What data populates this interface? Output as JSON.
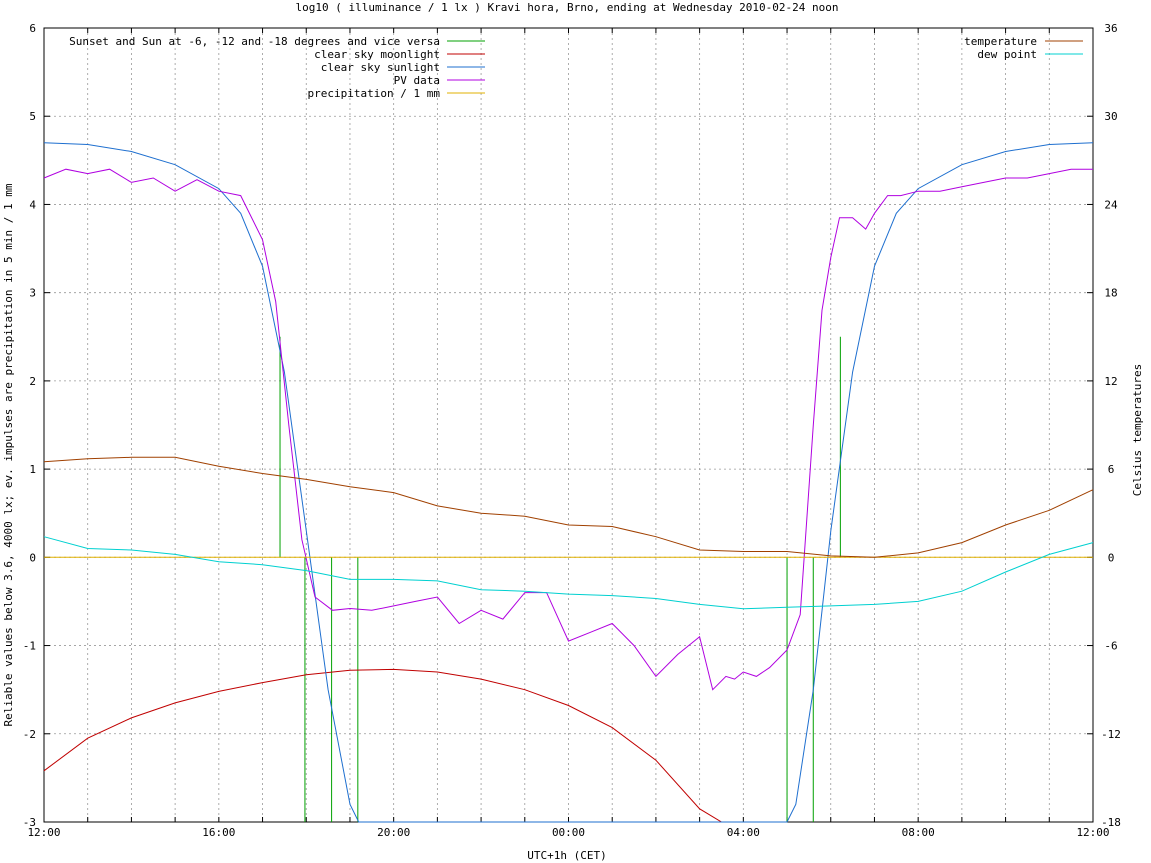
{
  "chart_data": {
    "type": "line",
    "title": "log10 ( illuminance / 1 lx ) Kravi hora, Brno, ending at Wednesday 2010-02-24 noon",
    "xlabel": "UTC+1h (CET)",
    "ylabel": "Reliable values below 3.6, 4000 lx; ev. impulses are precipitation in 5 min / 1 mm",
    "y2label": "Celsius temperatures",
    "xlim_hours": [
      0,
      24
    ],
    "xtick_hours": [
      0,
      4,
      8,
      12,
      16,
      20,
      24
    ],
    "xtick_labels": [
      "12:00",
      "16:00",
      "20:00",
      "00:00",
      "04:00",
      "08:00",
      "12:00"
    ],
    "ylim": [
      -3,
      6
    ],
    "yticks": [
      "-3",
      "-2",
      "-1",
      "0",
      "1",
      "2",
      "3",
      "4",
      "5",
      "6"
    ],
    "y2lim": [
      -18,
      36
    ],
    "y2ticks": [
      "-18",
      "-12",
      "-6",
      "0",
      "6",
      "12",
      "18",
      "24",
      "30",
      "36"
    ],
    "grid": true,
    "legend_left": "top-left",
    "legend_right": "top-right",
    "series": [
      {
        "name": "Sunset and Sun at -6, -12 and -18 degrees and vice versa",
        "color": "#00a000",
        "axis": "y",
        "type": "impulse",
        "x": [
          5.4,
          5.97,
          6.58,
          7.18,
          17.0,
          17.6,
          18.22
        ],
        "values": [
          2.5,
          0.0,
          0.0,
          0.0,
          0.0,
          0.0,
          2.5
        ],
        "impulse_base": [
          0,
          -3,
          -3,
          -3,
          -3,
          -3,
          0
        ]
      },
      {
        "name": "clear sky moonlight",
        "color": "#c00000",
        "axis": "y",
        "x": [
          0,
          1,
          2,
          3,
          4,
          5,
          6,
          7,
          8,
          9,
          10,
          11,
          12,
          13,
          14,
          15,
          15.5,
          16
        ],
        "values": [
          -2.42,
          -2.05,
          -1.82,
          -1.65,
          -1.52,
          -1.42,
          -1.33,
          -1.28,
          -1.27,
          -1.3,
          -1.38,
          -1.5,
          -1.68,
          -1.93,
          -2.3,
          -2.85,
          -3.0,
          -3.0
        ]
      },
      {
        "name": "clear sky sunlight",
        "color": "#1e6fcf",
        "axis": "y",
        "x": [
          0,
          1,
          2,
          3,
          4,
          4.5,
          5,
          5.5,
          6,
          6.5,
          7,
          7.2,
          17.0,
          17.2,
          17.6,
          18.0,
          18.5,
          19,
          19.5,
          20,
          21,
          22,
          23,
          24
        ],
        "values": [
          4.7,
          4.68,
          4.6,
          4.45,
          4.18,
          3.9,
          3.3,
          2.1,
          0.3,
          -1.5,
          -2.8,
          -3.0,
          -3.0,
          -2.8,
          -1.5,
          0.3,
          2.1,
          3.3,
          3.9,
          4.18,
          4.45,
          4.6,
          4.68,
          4.7
        ]
      },
      {
        "name": "PV data",
        "color": "#b000e0",
        "axis": "y",
        "x": [
          0,
          0.5,
          1,
          1.5,
          2,
          2.5,
          3,
          3.5,
          4,
          4.5,
          5,
          5.3,
          5.6,
          5.9,
          6.2,
          6.6,
          7,
          7.5,
          8,
          8.5,
          9,
          9.5,
          10,
          10.5,
          11,
          11.5,
          12,
          12.5,
          13,
          13.5,
          14,
          14.5,
          15,
          15.3,
          15.6,
          15.8,
          16,
          16.3,
          16.6,
          17,
          17.3,
          17.6,
          17.8,
          18,
          18.2,
          18.5,
          18.8,
          19,
          19.3,
          19.6,
          20,
          20.5,
          21,
          21.5,
          22,
          22.5,
          23,
          23.5,
          24
        ],
        "values": [
          4.3,
          4.4,
          4.35,
          4.4,
          4.25,
          4.3,
          4.15,
          4.28,
          4.15,
          4.1,
          3.6,
          2.9,
          1.5,
          0.2,
          -0.45,
          -0.6,
          -0.58,
          -0.6,
          -0.55,
          -0.5,
          -0.45,
          -0.75,
          -0.6,
          -0.7,
          -0.4,
          -0.4,
          -0.95,
          -0.85,
          -0.75,
          -1.0,
          -1.35,
          -1.1,
          -0.9,
          -1.5,
          -1.35,
          -1.38,
          -1.3,
          -1.35,
          -1.25,
          -1.05,
          -0.65,
          1.5,
          2.8,
          3.4,
          3.85,
          3.85,
          3.72,
          3.9,
          4.1,
          4.1,
          4.15,
          4.15,
          4.2,
          4.25,
          4.3,
          4.3,
          4.35,
          4.4,
          4.4
        ]
      },
      {
        "name": "precipitation / 1 mm",
        "color": "#e0b000",
        "axis": "y",
        "x": [
          0,
          24
        ],
        "values": [
          0,
          0
        ]
      },
      {
        "name": "temperature",
        "color": "#a04000",
        "axis": "y2",
        "x": [
          0,
          1,
          2,
          3,
          4,
          5,
          6,
          7,
          8,
          9,
          10,
          11,
          12,
          13,
          14,
          15,
          16,
          17,
          18,
          19,
          20,
          21,
          22,
          23,
          24
        ],
        "values": [
          6.5,
          6.7,
          6.8,
          6.8,
          6.2,
          5.7,
          5.3,
          4.8,
          4.4,
          3.5,
          3.0,
          2.8,
          2.2,
          2.1,
          1.4,
          0.5,
          0.4,
          0.4,
          0.1,
          0.0,
          0.3,
          1.0,
          2.2,
          3.2,
          4.6
        ]
      },
      {
        "name": "dew point",
        "color": "#00d0d0",
        "axis": "y2",
        "x": [
          0,
          1,
          2,
          3,
          4,
          5,
          6,
          7,
          8,
          9,
          10,
          11,
          12,
          13,
          14,
          15,
          16,
          17,
          18,
          19,
          20,
          21,
          22,
          23,
          24
        ],
        "values": [
          1.4,
          0.6,
          0.5,
          0.2,
          -0.3,
          -0.5,
          -0.9,
          -1.5,
          -1.5,
          -1.6,
          -2.2,
          -2.3,
          -2.5,
          -2.6,
          -2.8,
          -3.2,
          -3.5,
          -3.4,
          -3.3,
          -3.2,
          -3.0,
          -2.3,
          -1.0,
          0.2,
          1.0
        ]
      }
    ]
  }
}
